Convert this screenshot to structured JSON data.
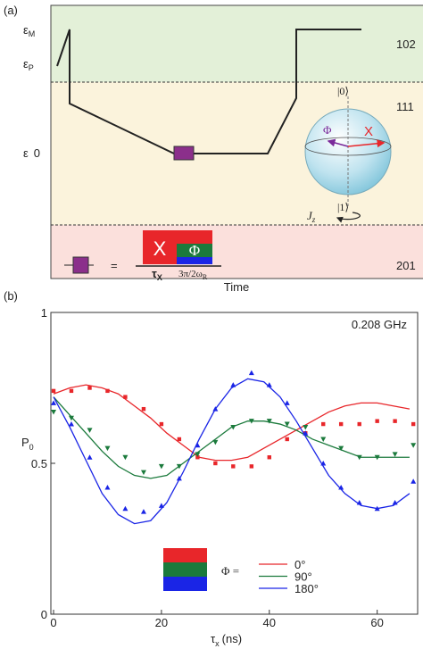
{
  "diagram": {
    "panel_label": "(a)",
    "levels": [
      {
        "symbol": "ε",
        "sub": "M"
      },
      {
        "symbol": "ε",
        "sub": "P"
      },
      {
        "symbol": "ε",
        "value": "0"
      }
    ],
    "regions": [
      "102",
      "111",
      "201"
    ],
    "bloch": {
      "top": "|0⟩",
      "bottom": "|1⟩",
      "axis": {
        "symbol": "J",
        "sub": "z"
      },
      "phase": "Φ",
      "rotation": "X"
    },
    "pulse": {
      "x_block": "X",
      "phi_block": "Φ",
      "equals": "=",
      "x_duration": {
        "symbol": "τ",
        "sub": "X"
      },
      "phi_duration": {
        "symbol": "3π/2ω",
        "sub": "R"
      }
    },
    "xlabel": "Time"
  },
  "chart_data": {
    "type": "scatter",
    "panel_label": "(b)",
    "annotation": "0.208 GHz",
    "xlabel": {
      "symbol": "τ",
      "sub": "x",
      "unit": "(ns)"
    },
    "ylabel": {
      "symbol": "P",
      "sub": "0"
    },
    "legend_title": "Φ =",
    "xlim": [
      -0.5,
      67.5
    ],
    "ylim": [
      0,
      1
    ],
    "xticks": [
      0,
      20,
      40,
      60
    ],
    "yticks": [
      0,
      0.5,
      1
    ],
    "x": [
      0,
      3.3,
      6.7,
      10,
      13.3,
      16.7,
      20,
      23.3,
      26.7,
      30,
      33.3,
      36.7,
      40,
      43.3,
      46.7,
      50,
      53.3,
      56.7,
      60,
      63.3,
      66.7
    ],
    "fit_x": [
      0,
      3,
      6,
      9,
      12,
      15,
      18,
      21,
      24,
      27,
      30,
      33,
      36,
      39,
      42,
      45,
      48,
      51,
      54,
      57,
      60,
      63,
      66
    ],
    "series": [
      {
        "name": "0°",
        "color": "#e8262a",
        "marker": "square",
        "values": [
          0.74,
          0.74,
          0.75,
          0.74,
          0.72,
          0.68,
          0.63,
          0.58,
          0.52,
          0.5,
          0.49,
          0.49,
          0.52,
          0.58,
          0.6,
          0.63,
          0.63,
          0.63,
          0.64,
          0.64,
          0.63
        ],
        "fit": [
          0.73,
          0.75,
          0.76,
          0.75,
          0.73,
          0.69,
          0.65,
          0.6,
          0.56,
          0.52,
          0.51,
          0.51,
          0.52,
          0.55,
          0.58,
          0.61,
          0.64,
          0.67,
          0.69,
          0.7,
          0.7,
          0.69,
          0.68
        ]
      },
      {
        "name": "90°",
        "color": "#1b7a3c",
        "marker": "triangle-down",
        "values": [
          0.67,
          0.65,
          0.61,
          0.55,
          0.52,
          0.47,
          0.49,
          0.49,
          0.53,
          0.57,
          0.62,
          0.64,
          0.64,
          0.63,
          0.62,
          0.58,
          0.55,
          0.52,
          0.52,
          0.53,
          0.56
        ],
        "fit": [
          0.72,
          0.66,
          0.6,
          0.54,
          0.49,
          0.46,
          0.45,
          0.46,
          0.5,
          0.54,
          0.58,
          0.62,
          0.64,
          0.64,
          0.63,
          0.61,
          0.58,
          0.56,
          0.54,
          0.52,
          0.52,
          0.52,
          0.52
        ]
      },
      {
        "name": "180°",
        "color": "#1a25e6",
        "marker": "triangle-up",
        "values": [
          0.7,
          0.63,
          0.52,
          0.42,
          0.35,
          0.34,
          0.36,
          0.45,
          0.56,
          0.68,
          0.76,
          0.8,
          0.76,
          0.7,
          0.6,
          0.5,
          0.42,
          0.37,
          0.35,
          0.37,
          0.44
        ],
        "fit": [
          0.72,
          0.62,
          0.51,
          0.4,
          0.33,
          0.3,
          0.31,
          0.37,
          0.47,
          0.58,
          0.68,
          0.75,
          0.78,
          0.77,
          0.72,
          0.64,
          0.55,
          0.46,
          0.4,
          0.36,
          0.35,
          0.36,
          0.4
        ]
      }
    ]
  }
}
